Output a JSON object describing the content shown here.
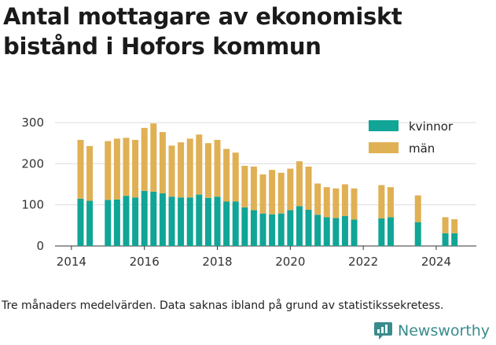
{
  "title": "Antal mottagare av ekonomiskt bistånd i Hofors kommun",
  "caption": "Tre månaders medelvärden. Data saknas ibland på grund av statistikssekretess.",
  "brand": {
    "name": "Newsworthy"
  },
  "colors": {
    "kvinnor": "#10a596",
    "man": "#e0b054",
    "grid": "#dddddd",
    "brand": "#3a8c8c"
  },
  "chart_data": {
    "type": "bar",
    "stacked": true,
    "title": "Antal mottagare av ekonomiskt bistånd i Hofors kommun",
    "xlabel": "",
    "ylabel": "",
    "ylim": [
      0,
      300
    ],
    "yticks": [
      0,
      100,
      200,
      300
    ],
    "xlim": [
      2013.55,
      2025.1
    ],
    "xticks": [
      2014,
      2016,
      2018,
      2020,
      2022,
      2024
    ],
    "legend_position": "top-right",
    "grid": true,
    "x": [
      2014.25,
      2014.5,
      2015.0,
      2015.25,
      2015.5,
      2015.75,
      2016.0,
      2016.25,
      2016.5,
      2016.75,
      2017.0,
      2017.25,
      2017.5,
      2017.75,
      2018.0,
      2018.25,
      2018.5,
      2018.75,
      2019.0,
      2019.25,
      2019.5,
      2019.75,
      2020.0,
      2020.25,
      2020.5,
      2020.75,
      2021.0,
      2021.25,
      2021.5,
      2021.75,
      2022.5,
      2022.75,
      2023.5,
      2024.25,
      2024.5
    ],
    "series": [
      {
        "name": "kvinnor",
        "values": [
          115,
          110,
          112,
          113,
          122,
          118,
          134,
          132,
          128,
          120,
          118,
          118,
          125,
          117,
          120,
          108,
          108,
          94,
          87,
          79,
          77,
          79,
          87,
          97,
          88,
          76,
          70,
          68,
          73,
          64,
          67,
          70,
          58,
          31,
          31
        ]
      },
      {
        "name": "män",
        "values": [
          143,
          133,
          143,
          148,
          141,
          140,
          153,
          166,
          149,
          124,
          134,
          143,
          146,
          133,
          138,
          128,
          119,
          101,
          106,
          95,
          108,
          99,
          101,
          109,
          105,
          76,
          73,
          72,
          77,
          76,
          81,
          73,
          65,
          39,
          34
        ]
      }
    ]
  }
}
